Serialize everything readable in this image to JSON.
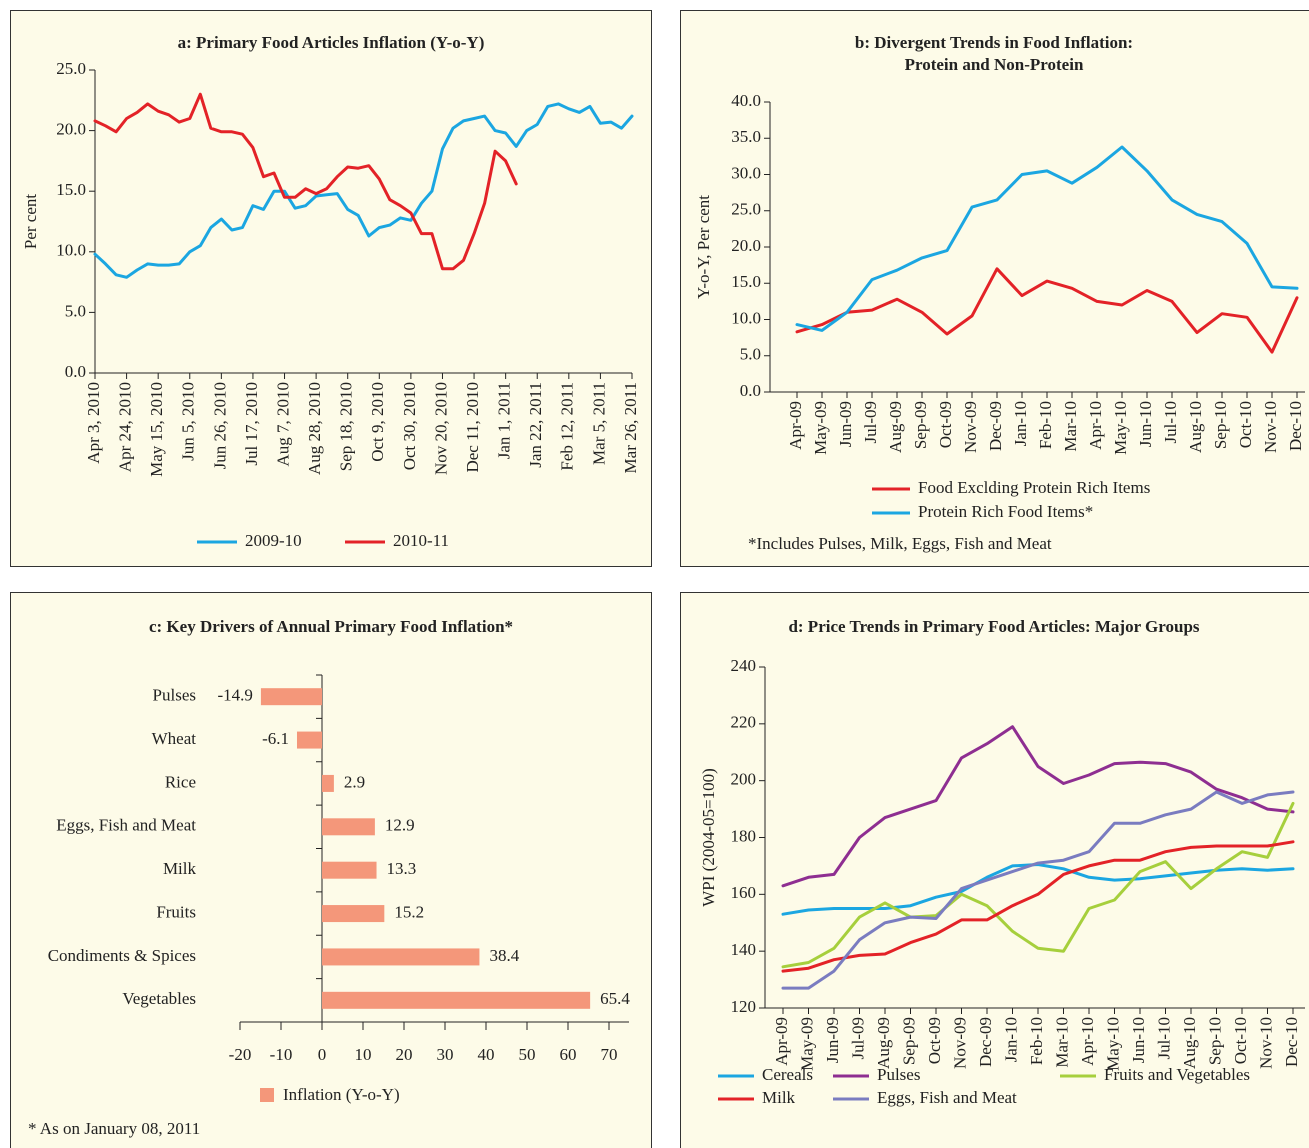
{
  "chart_data": [
    {
      "type": "line",
      "title": "a: Primary Food Articles Inflation (Y-o-Y)",
      "ylabel": "Per cent",
      "categories": [
        "Apr 3, 2010",
        null,
        null,
        "Apr 24, 2010",
        null,
        null,
        "May 15, 2010",
        null,
        null,
        "Jun 5, 2010",
        null,
        null,
        "Jun 26, 2010",
        null,
        null,
        "Jul 17, 2010",
        null,
        null,
        "Aug 7, 2010",
        null,
        null,
        "Aug 28, 2010",
        null,
        null,
        "Sep 18, 2010",
        null,
        null,
        "Oct 9, 2010",
        null,
        null,
        "Oct 30, 2010",
        null,
        null,
        "Nov 20, 2010",
        null,
        null,
        "Dec 11, 2010",
        null,
        null,
        "Jan 1, 2011",
        null,
        null,
        "Jan 22, 2011",
        null,
        null,
        "Feb 12, 2011",
        null,
        null,
        "Mar 5, 2011",
        null,
        null,
        "Mar 26, 2011"
      ],
      "series": [
        {
          "name": "2009-10",
          "color": "#1ba6e1",
          "values": [
            9.8,
            9.0,
            8.1,
            7.9,
            8.5,
            9.0,
            8.9,
            8.9,
            9.0,
            10.0,
            10.5,
            12.0,
            12.7,
            11.8,
            12.0,
            13.8,
            13.5,
            15.0,
            15.0,
            13.6,
            13.8,
            14.6,
            14.7,
            14.8,
            13.5,
            13.0,
            11.3,
            12.0,
            12.2,
            12.8,
            12.6,
            14.0,
            15.0,
            18.5,
            20.2,
            20.8,
            21.0,
            21.2,
            20.0,
            19.8,
            18.7,
            20.0,
            20.5,
            22.0,
            22.2,
            21.8,
            21.5,
            22.0,
            20.6,
            20.7,
            20.2,
            21.2
          ]
        },
        {
          "name": "2010-11",
          "color": "#e32227",
          "values": [
            20.8,
            20.4,
            19.9,
            21.0,
            21.5,
            22.2,
            21.6,
            21.3,
            20.7,
            21.0,
            23.0,
            20.2,
            19.9,
            19.9,
            19.7,
            18.6,
            16.2,
            16.5,
            14.5,
            14.5,
            15.2,
            14.8,
            15.2,
            16.2,
            17.0,
            16.9,
            17.1,
            16.0,
            14.3,
            13.8,
            13.2,
            11.5,
            11.5,
            8.6,
            8.6,
            9.3,
            11.5,
            14.0,
            18.3,
            17.5,
            15.6,
            null,
            null,
            null,
            null,
            null,
            null,
            null,
            null,
            null,
            null,
            null
          ]
        }
      ],
      "ylim": [
        0,
        25
      ],
      "yticks": [
        {
          "value": 0,
          "label": "0.0"
        },
        {
          "value": 5,
          "label": "5.0"
        },
        {
          "value": 10,
          "label": "10.0"
        },
        {
          "value": 15,
          "label": "15.0"
        },
        {
          "value": 20,
          "label": "20.0"
        },
        {
          "value": 25,
          "label": "25.0"
        }
      ],
      "legend": "bottom"
    },
    {
      "type": "line",
      "title": [
        "b: Divergent Trends in Food Inflation:",
        "Protein and Non-Protein"
      ],
      "ylabel": "Y-o-Y, Per cent",
      "categories": [
        "Apr-09",
        "May-09",
        "Jun-09",
        "Jul-09",
        "Aug-09",
        "Sep-09",
        "Oct-09",
        "Nov-09",
        "Dec-09",
        "Jan-10",
        "Feb-10",
        "Mar-10",
        "Apr-10",
        "May-10",
        "Jun-10",
        "Jul-10",
        "Aug-10",
        "Sep-10",
        "Oct-10",
        "Nov-10",
        "Dec-10"
      ],
      "series": [
        {
          "name": "Food Exclding Protein Rich Items",
          "color": "#e32227",
          "values": [
            8.3,
            9.3,
            11,
            11.3,
            12.8,
            11,
            8,
            10.5,
            17,
            13.3,
            15.3,
            14.3,
            12.5,
            12,
            14,
            12.5,
            8.2,
            10.8,
            10.3,
            5.5,
            13
          ]
        },
        {
          "name": "Protein Rich Food Items*",
          "color": "#1ba6e1",
          "values": [
            9.3,
            8.5,
            11,
            15.5,
            16.8,
            18.5,
            19.5,
            25.5,
            26.5,
            30,
            30.5,
            28.8,
            31,
            33.8,
            30.5,
            26.5,
            24.5,
            23.5,
            20.5,
            14.5,
            14.3
          ]
        }
      ],
      "ylim": [
        0,
        40
      ],
      "yticks": [
        {
          "value": 0,
          "label": "0.0"
        },
        {
          "value": 5,
          "label": "5.0"
        },
        {
          "value": 10,
          "label": "10.0"
        },
        {
          "value": 15,
          "label": "15.0"
        },
        {
          "value": 20,
          "label": "20.0"
        },
        {
          "value": 25,
          "label": "25.0"
        },
        {
          "value": 30,
          "label": "30.0"
        },
        {
          "value": 35,
          "label": "35.0"
        },
        {
          "value": 40,
          "label": "40.0"
        }
      ],
      "legend": "bottom",
      "note": "*Includes Pulses, Milk, Eggs, Fish and Meat"
    },
    {
      "type": "bar",
      "horizontal": true,
      "title": "c: Key Drivers of Annual Primary Food Inflation*",
      "categories": [
        "Pulses",
        "Wheat",
        "Rice",
        "Eggs, Fish and Meat",
        "Milk",
        "Fruits",
        "Condiments & Spices",
        "Vegetables"
      ],
      "values": [
        -14.9,
        -6.1,
        2.9,
        12.9,
        13.3,
        15.2,
        38.4,
        65.4
      ],
      "color": "#f4977a",
      "xlim": [
        -20,
        70
      ],
      "xticks": [
        -20,
        -10,
        0,
        10,
        20,
        30,
        40,
        50,
        60,
        70
      ],
      "legend_label": "Inflation (Y-o-Y)",
      "legend": "bottom",
      "note": "* As on January 08, 2011"
    },
    {
      "type": "line",
      "title": "d: Price Trends in Primary Food Articles: Major Groups",
      "ylabel": "WPI (2004-05=100)",
      "categories": [
        "Apr-09",
        "May-09",
        "Jun-09",
        "Jul-09",
        "Aug-09",
        "Sep-09",
        "Oct-09",
        "Nov-09",
        "Dec-09",
        "Jan-10",
        "Feb-10",
        "Mar-10",
        "Apr-10",
        "May-10",
        "Jun-10",
        "Jul-10",
        "Aug-10",
        "Sep-10",
        "Oct-10",
        "Nov-10",
        "Dec-10"
      ],
      "series": [
        {
          "name": "Cereals",
          "color": "#1ba6e1",
          "values": [
            153,
            154.5,
            155,
            155,
            155,
            156,
            159,
            161,
            166,
            170,
            170.5,
            169,
            166,
            165,
            165.5,
            166.5,
            167.5,
            168.5,
            169,
            168.5,
            169
          ]
        },
        {
          "name": "Pulses",
          "color": "#8e2e91",
          "values": [
            163,
            166,
            167,
            180,
            187,
            190,
            193,
            208,
            213,
            219,
            205,
            199,
            202,
            206,
            206.5,
            206,
            203,
            197,
            194,
            190,
            189
          ]
        },
        {
          "name": "Fruits and Vegetables",
          "color": "#a6cf3c",
          "values": [
            134.5,
            136,
            141,
            152,
            157,
            152,
            152.5,
            160,
            156,
            147,
            141,
            140,
            155,
            158,
            168,
            171.5,
            162,
            169,
            175,
            173,
            192
          ]
        },
        {
          "name": "Milk",
          "color": "#e32227",
          "values": [
            133,
            134,
            137,
            138.5,
            139,
            143,
            146,
            151,
            151,
            156,
            160,
            167,
            170,
            172,
            172,
            175,
            176.5,
            177,
            177,
            177,
            178.5
          ]
        },
        {
          "name": "Eggs, Fish and Meat",
          "color": "#7a7cc0",
          "values": [
            127,
            127,
            133,
            144,
            150,
            152,
            151.5,
            162,
            165,
            168,
            171,
            172,
            175,
            185,
            185,
            188,
            190,
            196,
            192,
            195,
            196
          ]
        }
      ],
      "ylim": [
        120,
        240
      ],
      "yticks": [
        120,
        140,
        160,
        180,
        200,
        220,
        240
      ],
      "legend": "bottom"
    }
  ]
}
